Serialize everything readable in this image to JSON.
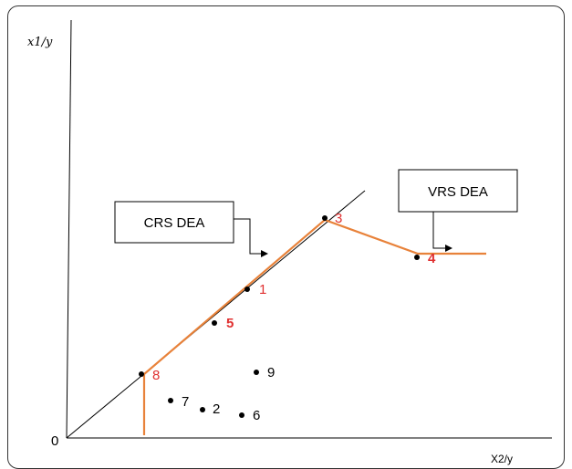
{
  "axes": {
    "y_label": "x1/y",
    "x_label": "X2/y",
    "origin_label": "0"
  },
  "boxes": {
    "crs": "CRS DEA",
    "vrs": "VRS DEA"
  },
  "points": [
    {
      "id": "p8",
      "label": "8",
      "color": "#e03030",
      "bold": false
    },
    {
      "id": "p7",
      "label": "7",
      "color": "#000000",
      "bold": false
    },
    {
      "id": "p2",
      "label": "2",
      "color": "#000000",
      "bold": false
    },
    {
      "id": "p6",
      "label": "6",
      "color": "#000000",
      "bold": false
    },
    {
      "id": "p9",
      "label": "9",
      "color": "#000000",
      "bold": false
    },
    {
      "id": "p5",
      "label": "5",
      "color": "#e03030",
      "bold": true
    },
    {
      "id": "p1",
      "label": "1",
      "color": "#e03030",
      "bold": false
    },
    {
      "id": "p3",
      "label": "3",
      "color": "#e03030",
      "bold": false
    },
    {
      "id": "p4",
      "label": "4",
      "color": "#e03030",
      "bold": true
    }
  ],
  "colors": {
    "frontier": "#e8823a",
    "axis": "#000000",
    "efficient_label": "#e03030"
  }
}
